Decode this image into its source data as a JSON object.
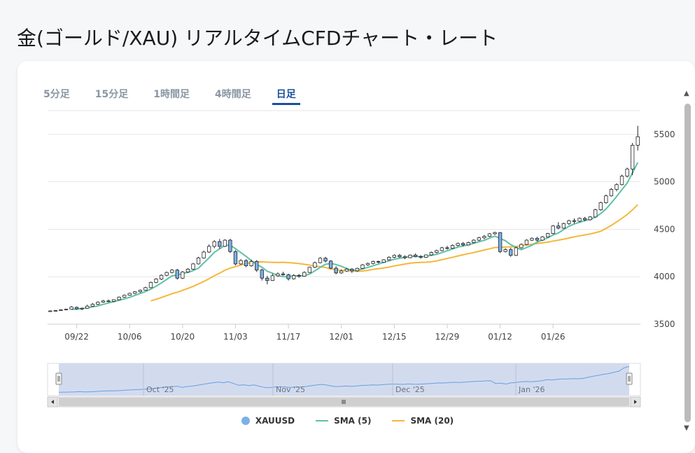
{
  "page": {
    "title": "金(ゴールド/XAU) リアルタイムCFDチャート・レート"
  },
  "tabs": [
    {
      "label": "5分足",
      "active": false
    },
    {
      "label": "15分足",
      "active": false
    },
    {
      "label": "1時間足",
      "active": false
    },
    {
      "label": "4時間足",
      "active": false
    },
    {
      "label": "日足",
      "active": true
    }
  ],
  "colors": {
    "candle_up": "#ffffff",
    "candle_down": "#7cb0e8",
    "sma5": "#5fc0a9",
    "sma20": "#f5b73b",
    "accent": "#1a4f9c",
    "navigator_fill": "#cdd7ec"
  },
  "chart_data": {
    "type": "candlestick",
    "x_tick_labels": [
      "09/22",
      "10/06",
      "10/20",
      "11/03",
      "11/17",
      "12/01",
      "12/15",
      "12/29",
      "01/12",
      "01/26"
    ],
    "y_tick_labels": [
      "3500",
      "4000",
      "4500",
      "5000",
      "5500"
    ],
    "ylim": [
      3500,
      5750
    ],
    "grid": true,
    "navigator_labels": [
      "Oct '25",
      "Nov '25",
      "Dec '25",
      "Jan '26"
    ],
    "legend_position": "bottom",
    "series": [
      {
        "name": "XAUUSD",
        "type": "candlestick",
        "ohlc": [
          [
            3635,
            3645,
            3630,
            3640
          ],
          [
            3640,
            3648,
            3633,
            3644
          ],
          [
            3644,
            3658,
            3640,
            3652
          ],
          [
            3652,
            3662,
            3645,
            3658
          ],
          [
            3658,
            3690,
            3655,
            3680
          ],
          [
            3678,
            3685,
            3650,
            3662
          ],
          [
            3662,
            3675,
            3648,
            3668
          ],
          [
            3668,
            3705,
            3662,
            3690
          ],
          [
            3690,
            3722,
            3685,
            3710
          ],
          [
            3710,
            3740,
            3702,
            3732
          ],
          [
            3732,
            3755,
            3725,
            3745
          ],
          [
            3745,
            3760,
            3730,
            3740
          ],
          [
            3740,
            3762,
            3732,
            3758
          ],
          [
            3758,
            3792,
            3750,
            3785
          ],
          [
            3785,
            3812,
            3778,
            3805
          ],
          [
            3805,
            3832,
            3798,
            3825
          ],
          [
            3825,
            3848,
            3815,
            3842
          ],
          [
            3842,
            3865,
            3830,
            3858
          ],
          [
            3858,
            3895,
            3852,
            3885
          ],
          [
            3885,
            3948,
            3880,
            3940
          ],
          [
            3940,
            3985,
            3932,
            3975
          ],
          [
            3975,
            4025,
            3965,
            4015
          ],
          [
            4015,
            4055,
            4005,
            4045
          ],
          [
            4045,
            4080,
            4035,
            4070
          ],
          [
            4070,
            4082,
            3970,
            3985
          ],
          [
            3985,
            4060,
            3975,
            4050
          ],
          [
            4050,
            4090,
            4042,
            4080
          ],
          [
            4080,
            4145,
            4072,
            4135
          ],
          [
            4135,
            4210,
            4128,
            4198
          ],
          [
            4198,
            4275,
            4190,
            4260
          ],
          [
            4260,
            4340,
            4250,
            4320
          ],
          [
            4320,
            4385,
            4300,
            4370
          ],
          [
            4370,
            4398,
            4295,
            4320
          ],
          [
            4320,
            4395,
            4312,
            4385
          ],
          [
            4385,
            4400,
            4250,
            4265
          ],
          [
            4265,
            4280,
            4120,
            4135
          ],
          [
            4135,
            4185,
            4125,
            4170
          ],
          [
            4170,
            4185,
            4100,
            4115
          ],
          [
            4115,
            4180,
            4105,
            4160
          ],
          [
            4160,
            4175,
            4050,
            4070
          ],
          [
            4070,
            4085,
            3960,
            3985
          ],
          [
            3985,
            4010,
            3920,
            3960
          ],
          [
            3960,
            4030,
            3955,
            4010
          ],
          [
            4010,
            4045,
            3998,
            4030
          ],
          [
            4030,
            4052,
            4012,
            4020
          ],
          [
            4020,
            4032,
            3960,
            3978
          ],
          [
            3978,
            4028,
            3970,
            4012
          ],
          [
            4012,
            4030,
            3988,
            4005
          ],
          [
            4005,
            4058,
            4000,
            4045
          ],
          [
            4045,
            4105,
            4040,
            4100
          ],
          [
            4100,
            4160,
            4090,
            4148
          ],
          [
            4148,
            4205,
            4140,
            4195
          ],
          [
            4195,
            4210,
            4150,
            4165
          ],
          [
            4165,
            4175,
            4080,
            4090
          ],
          [
            4090,
            4110,
            4025,
            4040
          ],
          [
            4040,
            4075,
            4030,
            4060
          ],
          [
            4060,
            4092,
            4050,
            4080
          ],
          [
            4080,
            4090,
            4040,
            4062
          ],
          [
            4062,
            4095,
            4052,
            4088
          ],
          [
            4088,
            4135,
            4080,
            4125
          ],
          [
            4125,
            4150,
            4115,
            4140
          ],
          [
            4140,
            4170,
            4130,
            4160
          ],
          [
            4160,
            4170,
            4140,
            4152
          ],
          [
            4152,
            4185,
            4145,
            4178
          ],
          [
            4178,
            4215,
            4170,
            4205
          ],
          [
            4205,
            4235,
            4195,
            4225
          ],
          [
            4225,
            4240,
            4200,
            4210
          ],
          [
            4210,
            4226,
            4185,
            4200
          ],
          [
            4200,
            4235,
            4195,
            4228
          ],
          [
            4228,
            4245,
            4205,
            4212
          ],
          [
            4212,
            4228,
            4190,
            4205
          ],
          [
            4205,
            4235,
            4198,
            4230
          ],
          [
            4230,
            4265,
            4222,
            4255
          ],
          [
            4255,
            4285,
            4245,
            4275
          ],
          [
            4275,
            4315,
            4268,
            4305
          ],
          [
            4305,
            4325,
            4285,
            4300
          ],
          [
            4300,
            4340,
            4292,
            4330
          ],
          [
            4330,
            4360,
            4320,
            4350
          ],
          [
            4350,
            4365,
            4320,
            4335
          ],
          [
            4335,
            4370,
            4330,
            4360
          ],
          [
            4360,
            4395,
            4352,
            4385
          ],
          [
            4385,
            4420,
            4375,
            4410
          ],
          [
            4410,
            4440,
            4395,
            4425
          ],
          [
            4425,
            4460,
            4418,
            4452
          ],
          [
            4452,
            4475,
            4440,
            4465
          ],
          [
            4465,
            4470,
            4250,
            4265
          ],
          [
            4265,
            4300,
            4255,
            4285
          ],
          [
            4285,
            4305,
            4210,
            4225
          ],
          [
            4225,
            4315,
            4218,
            4305
          ],
          [
            4305,
            4352,
            4295,
            4340
          ],
          [
            4340,
            4395,
            4332,
            4385
          ],
          [
            4385,
            4415,
            4375,
            4405
          ],
          [
            4405,
            4420,
            4370,
            4385
          ],
          [
            4385,
            4430,
            4378,
            4420
          ],
          [
            4420,
            4462,
            4412,
            4455
          ],
          [
            4455,
            4545,
            4448,
            4535
          ],
          [
            4535,
            4575,
            4500,
            4512
          ],
          [
            4512,
            4570,
            4505,
            4560
          ],
          [
            4560,
            4600,
            4545,
            4590
          ],
          [
            4590,
            4615,
            4560,
            4585
          ],
          [
            4585,
            4625,
            4575,
            4615
          ],
          [
            4615,
            4630,
            4585,
            4600
          ],
          [
            4600,
            4640,
            4592,
            4630
          ],
          [
            4630,
            4715,
            4622,
            4705
          ],
          [
            4705,
            4790,
            4695,
            4780
          ],
          [
            4780,
            4865,
            4770,
            4852
          ],
          [
            4852,
            4935,
            4845,
            4920
          ],
          [
            4920,
            4985,
            4900,
            4970
          ],
          [
            4970,
            5075,
            4962,
            5060
          ],
          [
            5060,
            5150,
            5045,
            5135
          ],
          [
            5135,
            5410,
            5070,
            5385
          ],
          [
            5385,
            5590,
            5330,
            5475
          ]
        ]
      },
      {
        "name": "SMA (5)",
        "type": "line"
      },
      {
        "name": "SMA (20)",
        "type": "line"
      }
    ]
  }
}
